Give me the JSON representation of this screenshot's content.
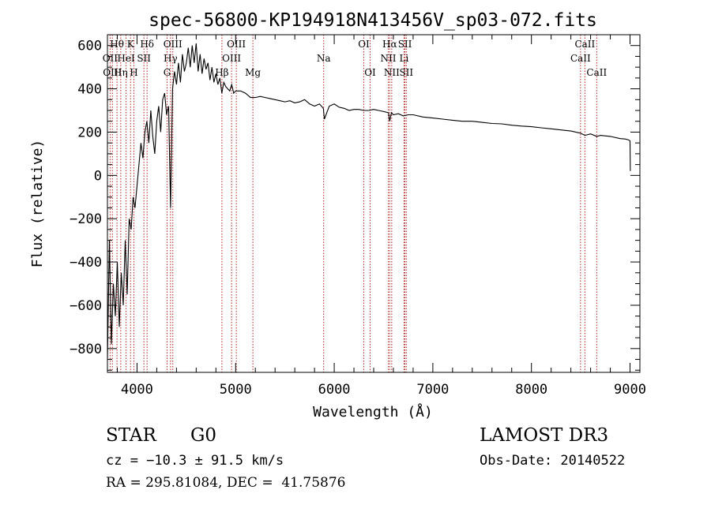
{
  "chart_data": {
    "type": "line",
    "title": "spec-56800-KP194918N413456V_sp03-072.fits",
    "xlabel": "Wavelength (Å)",
    "ylabel": "Flux (relative)",
    "xlim": [
      3700,
      9100
    ],
    "ylim": [
      -910,
      650
    ],
    "xticks": [
      "4000",
      "5000",
      "6000",
      "7000",
      "8000",
      "9000"
    ],
    "yticks": [
      "600",
      "400",
      "200",
      "0",
      "−200",
      "−400",
      "−600",
      "−800"
    ],
    "series": [
      {
        "name": "spectrum",
        "x": [
          3700,
          3720,
          3740,
          3760,
          3780,
          3800,
          3820,
          3840,
          3860,
          3880,
          3900,
          3920,
          3940,
          3960,
          3980,
          4000,
          4020,
          4040,
          4060,
          4080,
          4100,
          4120,
          4140,
          4160,
          4180,
          4200,
          4220,
          4240,
          4260,
          4280,
          4300,
          4320,
          4340,
          4360,
          4380,
          4400,
          4420,
          4440,
          4460,
          4480,
          4500,
          4520,
          4540,
          4560,
          4580,
          4600,
          4620,
          4640,
          4660,
          4680,
          4700,
          4720,
          4740,
          4760,
          4780,
          4800,
          4820,
          4840,
          4860,
          4880,
          4900,
          4920,
          4940,
          4960,
          4980,
          5000,
          5050,
          5100,
          5150,
          5200,
          5250,
          5300,
          5350,
          5400,
          5450,
          5500,
          5550,
          5600,
          5650,
          5700,
          5750,
          5800,
          5850,
          5890,
          5900,
          5950,
          6000,
          6050,
          6100,
          6150,
          6200,
          6250,
          6300,
          6350,
          6400,
          6450,
          6500,
          6550,
          6563,
          6580,
          6600,
          6650,
          6700,
          6750,
          6800,
          6900,
          7000,
          7100,
          7200,
          7300,
          7400,
          7500,
          7600,
          7700,
          7800,
          7900,
          8000,
          8100,
          8200,
          8300,
          8400,
          8498,
          8542,
          8600,
          8662,
          8700,
          8800,
          8900,
          8950,
          8980,
          9000,
          9003
        ],
        "y": [
          -850,
          -300,
          -780,
          -500,
          -650,
          -400,
          -700,
          -450,
          -600,
          -300,
          -550,
          -200,
          -250,
          -100,
          -150,
          -50,
          50,
          150,
          80,
          200,
          250,
          150,
          300,
          180,
          100,
          250,
          320,
          200,
          350,
          380,
          280,
          320,
          -150,
          400,
          480,
          420,
          520,
          430,
          560,
          480,
          520,
          590,
          500,
          600,
          520,
          610,
          480,
          560,
          470,
          540,
          490,
          520,
          440,
          500,
          430,
          470,
          420,
          450,
          380,
          430,
          410,
          400,
          390,
          420,
          380,
          390,
          390,
          380,
          360,
          360,
          365,
          360,
          355,
          350,
          345,
          340,
          345,
          335,
          340,
          350,
          330,
          320,
          330,
          310,
          260,
          320,
          330,
          315,
          310,
          300,
          305,
          305,
          300,
          300,
          305,
          300,
          295,
          290,
          250,
          290,
          280,
          285,
          275,
          280,
          280,
          270,
          265,
          260,
          255,
          250,
          250,
          245,
          240,
          238,
          232,
          228,
          225,
          220,
          215,
          210,
          205,
          195,
          185,
          192,
          180,
          185,
          180,
          170,
          168,
          165,
          160,
          20
        ]
      }
    ],
    "lines": [
      {
        "name": "Hθ",
        "x": 3797,
        "row": 1
      },
      {
        "name": "OII",
        "x": 3727,
        "row": 2
      },
      {
        "name": "OIII",
        "x": 3750,
        "row": 3
      },
      {
        "name": "Hη",
        "x": 3835,
        "row": 3
      },
      {
        "name": "HeI",
        "x": 3889,
        "row": 2
      },
      {
        "name": "K",
        "x": 3934,
        "row": 1
      },
      {
        "name": "H",
        "x": 3968,
        "row": 3
      },
      {
        "name": "SII",
        "x": 4070,
        "row": 2
      },
      {
        "name": "Hδ",
        "x": 4102,
        "row": 1
      },
      {
        "name": "OIII",
        "x": 4363,
        "row": 1
      },
      {
        "name": "Hγ",
        "x": 4340,
        "row": 2
      },
      {
        "name": "G",
        "x": 4305,
        "row": 3
      },
      {
        "name": "OIII",
        "x": 5007,
        "row": 1
      },
      {
        "name": "OIII",
        "x": 4959,
        "row": 2
      },
      {
        "name": "Hβ",
        "x": 4861,
        "row": 3
      },
      {
        "name": "Mg",
        "x": 5175,
        "row": 3
      },
      {
        "name": "Na",
        "x": 5893,
        "row": 2
      },
      {
        "name": "OI",
        "x": 6300,
        "row": 1
      },
      {
        "name": "OI",
        "x": 6364,
        "row": 3
      },
      {
        "name": "Hα",
        "x": 6563,
        "row": 1
      },
      {
        "name": "NII",
        "x": 6548,
        "row": 2
      },
      {
        "name": "NII",
        "x": 6583,
        "row": 3
      },
      {
        "name": "SII",
        "x": 6717,
        "row": 1
      },
      {
        "name": "Li",
        "x": 6708,
        "row": 2
      },
      {
        "name": "SII",
        "x": 6731,
        "row": 3
      },
      {
        "name": "CaII",
        "x": 8542,
        "row": 1
      },
      {
        "name": "CaII",
        "x": 8498,
        "row": 2
      },
      {
        "name": "CaII",
        "x": 8662,
        "row": 3
      }
    ]
  },
  "info": {
    "class": "STAR",
    "subclass": "G0",
    "survey": "LAMOST DR3",
    "cz": "cz = −10.3 ± 91.5 km/s",
    "obs_date": "Obs-Date: 20140522",
    "coords": "RA = 295.81084, DEC =  41.75876"
  }
}
